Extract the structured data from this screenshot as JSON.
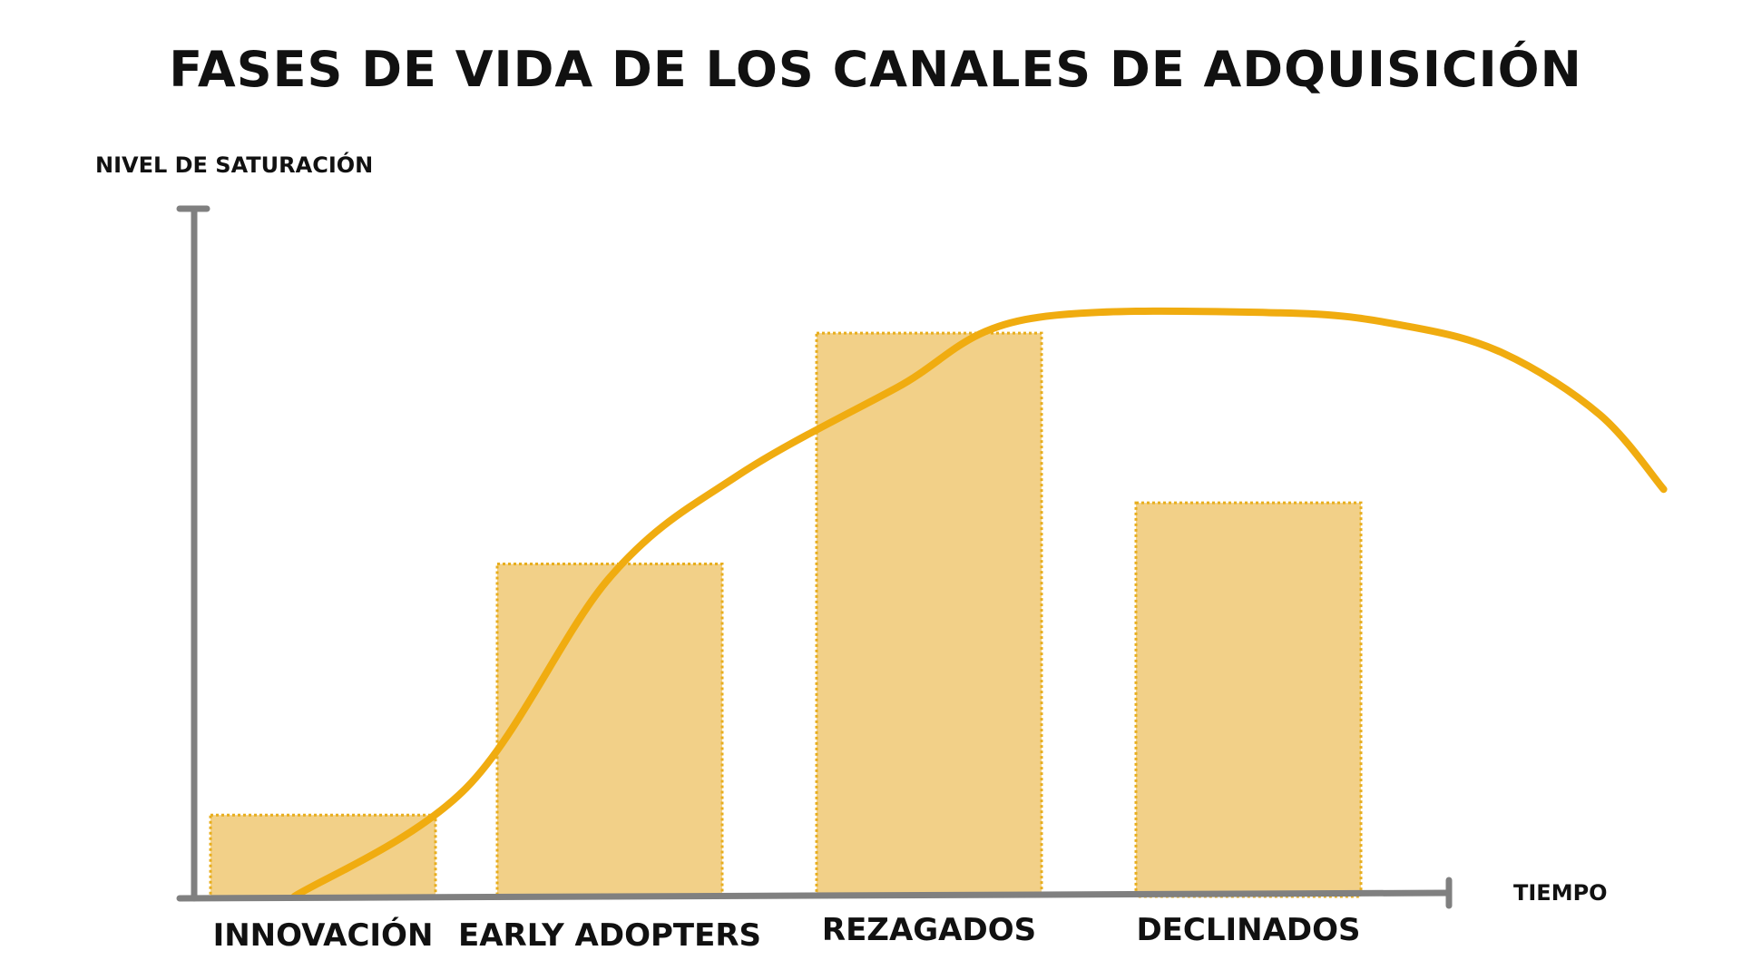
{
  "chart_data": {
    "type": "bar",
    "title": "FASES DE VIDA DE LOS CANALES DE ADQUISICIÓN",
    "ylabel": "NIVEL DE SATURACIÓN",
    "xlabel": "TIEMPO",
    "categories": [
      "INNOVACIÓN",
      "EARLY ADOPTERS",
      "REZAGADOS",
      "DECLINADOS"
    ],
    "values": [
      12,
      49,
      83,
      58
    ],
    "ylim": [
      0,
      100
    ],
    "curve": {
      "description_free": true,
      "points": [
        [
          -0.1,
          0
        ],
        [
          0.5,
          16
        ],
        [
          1.0,
          47
        ],
        [
          1.4,
          62
        ],
        [
          1.9,
          75
        ],
        [
          2.3,
          85
        ],
        [
          3.1,
          86
        ],
        [
          3.5,
          84
        ],
        [
          3.8,
          80
        ],
        [
          4.1,
          71
        ],
        [
          4.3,
          60
        ]
      ]
    },
    "grid": false,
    "legend": "none",
    "colors": {
      "bar_fill": "#F2D088",
      "bar_border": "#E8AE1E",
      "curve": "#F0AC10",
      "axis": "#808080",
      "text": "#111111"
    }
  }
}
